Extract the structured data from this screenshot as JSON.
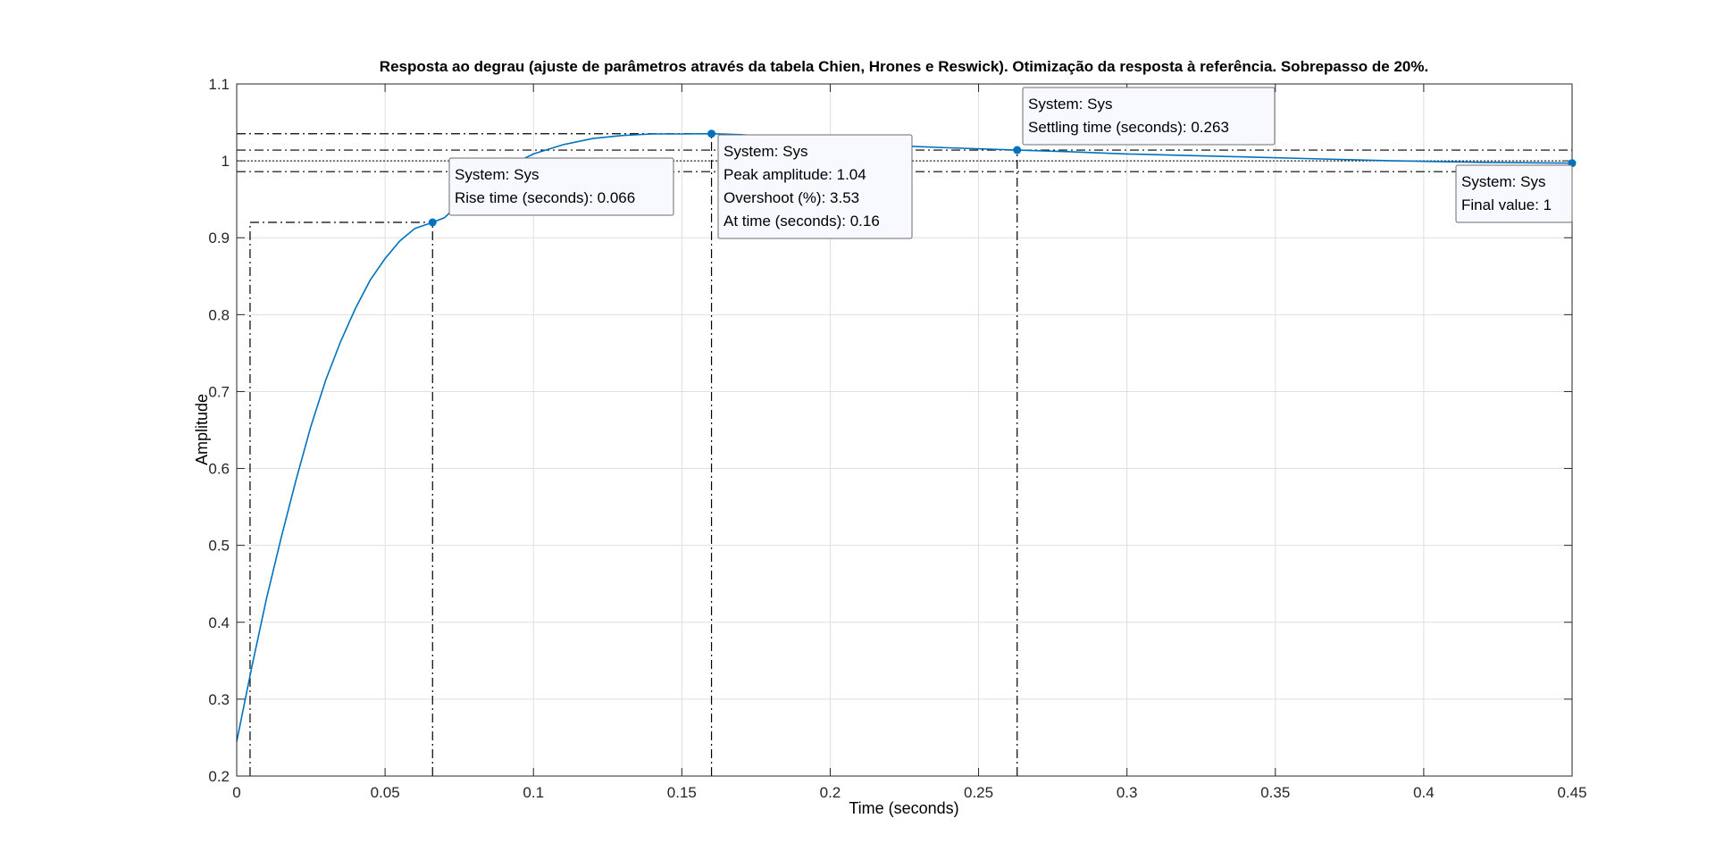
{
  "chart_data": {
    "type": "line",
    "title": "Resposta ao degrau (ajuste de parâmetros através da tabela Chien, Hrones e Reswick). Otimização da resposta à referência. Sobrepasso de 20%.",
    "xlabel": "Time (seconds)",
    "ylabel": "Amplitude",
    "xlim": [
      0,
      0.45
    ],
    "ylim": [
      0.2,
      1.1
    ],
    "x_ticks": [
      0,
      0.05,
      0.1,
      0.15,
      0.2,
      0.25,
      0.3,
      0.35,
      0.4,
      0.45
    ],
    "x_tick_labels": [
      "0",
      "0.05",
      "0.1",
      "0.15",
      "0.2",
      "0.25",
      "0.3",
      "0.35",
      "0.4",
      "0.45"
    ],
    "y_ticks": [
      0.2,
      0.3,
      0.4,
      0.5,
      0.6,
      0.7,
      0.8,
      0.9,
      1,
      1.1
    ],
    "y_tick_labels": [
      "0.2",
      "0.3",
      "0.4",
      "0.5",
      "0.6",
      "0.7",
      "0.8",
      "0.9",
      "1",
      "1.1"
    ],
    "grid": true,
    "line_color": "#0072bd",
    "series": [
      {
        "x": [
          0,
          0.005,
          0.01,
          0.015,
          0.02,
          0.025,
          0.03,
          0.035,
          0.04,
          0.045,
          0.05,
          0.055,
          0.06,
          0.066,
          0.07,
          0.08,
          0.09,
          0.1,
          0.11,
          0.12,
          0.13,
          0.14,
          0.15,
          0.16,
          0.17,
          0.18,
          0.2,
          0.22,
          0.24,
          0.263,
          0.28,
          0.3,
          0.33,
          0.36,
          0.39,
          0.42,
          0.45
        ],
        "y": [
          0.245,
          0.34,
          0.43,
          0.51,
          0.585,
          0.655,
          0.715,
          0.765,
          0.808,
          0.845,
          0.873,
          0.896,
          0.912,
          0.92,
          0.926,
          0.963,
          0.99,
          1.009,
          1.021,
          1.029,
          1.033,
          1.035,
          1.035,
          1.0353,
          1.034,
          1.031,
          1.025,
          1.02,
          1.017,
          1.014,
          1.012,
          1.009,
          1.006,
          1.003,
          1.0,
          0.998,
          0.997
        ]
      }
    ],
    "reference_lines": {
      "final_value": 1,
      "settling_upper": 1.014,
      "settling_lower": 0.986,
      "peak": 1.0353,
      "rise_level_low": 0.2,
      "rise_level_high": 0.92,
      "rise_start_time": 0.0045,
      "rise_end_time": 0.066,
      "peak_time": 0.16,
      "settling_time": 0.263
    },
    "markers": [
      {
        "x": 0.066,
        "y": 0.92
      },
      {
        "x": 0.16,
        "y": 1.0353
      },
      {
        "x": 0.263,
        "y": 1.014
      },
      {
        "x": 0.45,
        "y": 0.997
      }
    ],
    "datatips": [
      {
        "lines": [
          "System: Sys",
          "Rise time (seconds): 0.066"
        ]
      },
      {
        "lines": [
          "System: Sys",
          "Peak amplitude: 1.04",
          "Overshoot (%): 3.53",
          "At time (seconds): 0.16"
        ]
      },
      {
        "lines": [
          "System: Sys",
          "Settling time (seconds): 0.263"
        ]
      },
      {
        "lines": [
          "System: Sys",
          "Final value: 1"
        ]
      }
    ]
  }
}
